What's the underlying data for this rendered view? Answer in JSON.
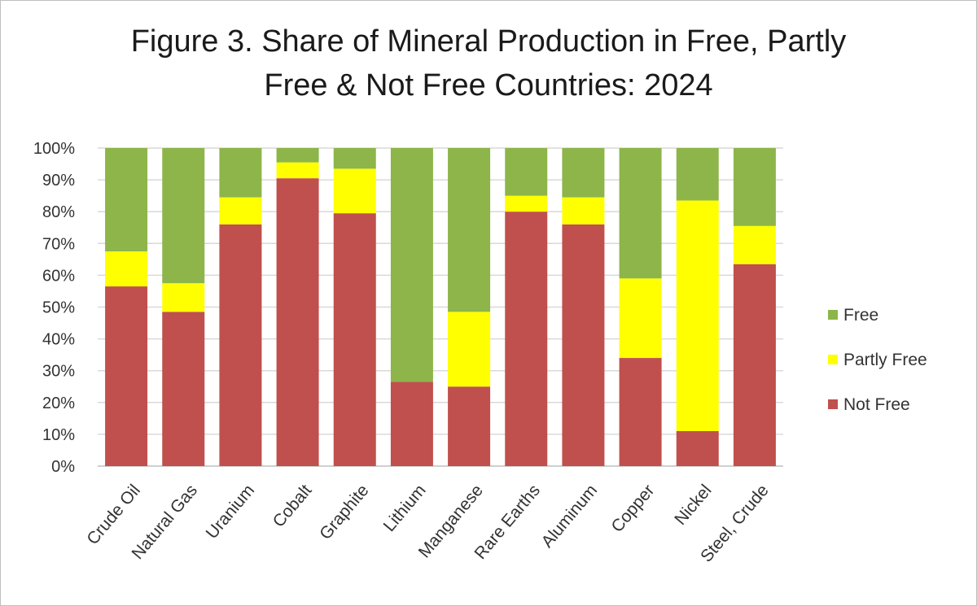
{
  "chart_data": {
    "type": "bar",
    "stacked": true,
    "title_line1": "Figure 3. Share of Mineral Production in Free, Partly",
    "title_line2": "Free & Not Free Countries: 2024",
    "categories": [
      "Crude Oil",
      "Natural Gas",
      "Uranium",
      "Cobalt",
      "Graphite",
      "Lithium",
      "Manganese",
      "Rare Earths",
      "Aluminum",
      "Copper",
      "Nickel",
      "Steel, Crude"
    ],
    "series": [
      {
        "name": "Not Free",
        "color": "#c0504d",
        "values": [
          56.5,
          48.5,
          76,
          90.5,
          79.5,
          26.5,
          25,
          80,
          76,
          34,
          11,
          63.5
        ]
      },
      {
        "name": "Partly Free",
        "color": "#ffff00",
        "values": [
          11,
          9,
          8.5,
          5,
          14,
          0,
          23.5,
          5,
          8.5,
          25,
          72.5,
          12
        ]
      },
      {
        "name": "Free",
        "color": "#8db54a",
        "values": [
          32.5,
          42.5,
          15.5,
          4.5,
          6.5,
          73.5,
          51.5,
          15,
          15.5,
          41,
          16.5,
          24.5
        ]
      }
    ],
    "legend_order": [
      "Free",
      "Partly Free",
      "Not Free"
    ],
    "legend_position": "right",
    "y_ticks": [
      "0%",
      "10%",
      "20%",
      "30%",
      "40%",
      "50%",
      "60%",
      "70%",
      "80%",
      "90%",
      "100%"
    ],
    "ylim": [
      0,
      100
    ],
    "grid": true
  }
}
